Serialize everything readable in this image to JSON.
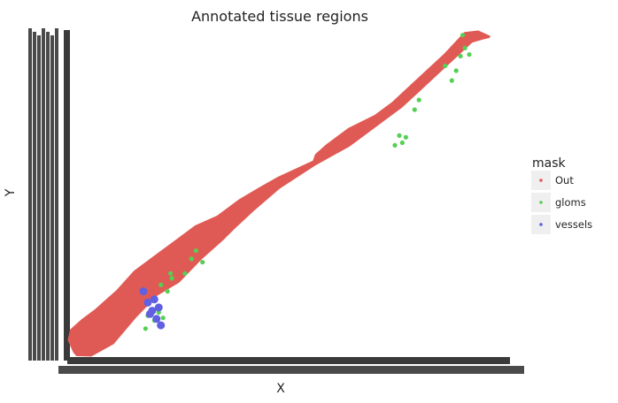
{
  "chart_data": {
    "type": "scatter",
    "title": "Annotated tissue regions",
    "xlabel": "X",
    "ylabel": "Y",
    "legend": {
      "title": "mask",
      "placement": "right",
      "entries": [
        {
          "name": "Out",
          "color": "#E05A55"
        },
        {
          "name": "gloms",
          "color": "#55D055"
        },
        {
          "name": "vessels",
          "color": "#6060E0"
        }
      ]
    },
    "grid": false,
    "xlim": [
      0,
      1000
    ],
    "ylim": [
      0,
      1000
    ],
    "series": [
      {
        "name": "Out",
        "color": "#E05A55",
        "outline": [
          [
            12,
            14
          ],
          [
            18,
            4
          ],
          [
            50,
            3
          ],
          [
            100,
            40
          ],
          [
            150,
            120
          ],
          [
            200,
            190
          ],
          [
            250,
            230
          ],
          [
            300,
            300
          ],
          [
            350,
            360
          ],
          [
            380,
            400
          ],
          [
            420,
            450
          ],
          [
            480,
            520
          ],
          [
            560,
            590
          ],
          [
            640,
            650
          ],
          [
            700,
            710
          ],
          [
            760,
            770
          ],
          [
            800,
            820
          ],
          [
            840,
            870
          ],
          [
            880,
            920
          ],
          [
            920,
            970
          ],
          [
            945,
            980
          ],
          [
            960,
            985
          ],
          [
            935,
            1000
          ],
          [
            905,
            995
          ],
          [
            860,
            930
          ],
          [
            820,
            880
          ],
          [
            780,
            830
          ],
          [
            740,
            780
          ],
          [
            700,
            740
          ],
          [
            640,
            700
          ],
          [
            590,
            650
          ],
          [
            565,
            620
          ],
          [
            560,
            600
          ],
          [
            520,
            575
          ],
          [
            480,
            550
          ],
          [
            440,
            520
          ],
          [
            390,
            480
          ],
          [
            340,
            430
          ],
          [
            290,
            400
          ],
          [
            240,
            350
          ],
          [
            200,
            310
          ],
          [
            150,
            260
          ],
          [
            110,
            200
          ],
          [
            60,
            140
          ],
          [
            30,
            110
          ],
          [
            5,
            80
          ],
          [
            0,
            50
          ]
        ]
      },
      {
        "name": "gloms",
        "color": "#55D055",
        "points": [
          [
            900,
            990
          ],
          [
            905,
            950
          ],
          [
            915,
            930
          ],
          [
            895,
            925
          ],
          [
            885,
            880
          ],
          [
            875,
            850
          ],
          [
            860,
            895
          ],
          [
            800,
            790
          ],
          [
            790,
            760
          ],
          [
            755,
            680
          ],
          [
            745,
            650
          ],
          [
            762,
            658
          ],
          [
            770,
            675
          ],
          [
            290,
            325
          ],
          [
            280,
            300
          ],
          [
            305,
            290
          ],
          [
            265,
            255
          ],
          [
            235,
            240
          ],
          [
            210,
            220
          ],
          [
            225,
            200
          ],
          [
            205,
            135
          ],
          [
            180,
            125
          ],
          [
            195,
            110
          ],
          [
            175,
            85
          ],
          [
            215,
            118
          ],
          [
            232,
            255
          ]
        ]
      },
      {
        "name": "vessels",
        "color": "#6060E0",
        "points": [
          [
            170,
            200
          ],
          [
            180,
            165
          ],
          [
            190,
            140
          ],
          [
            200,
            115
          ],
          [
            210,
            95
          ],
          [
            205,
            150
          ],
          [
            195,
            175
          ],
          [
            185,
            130
          ]
        ]
      }
    ]
  }
}
